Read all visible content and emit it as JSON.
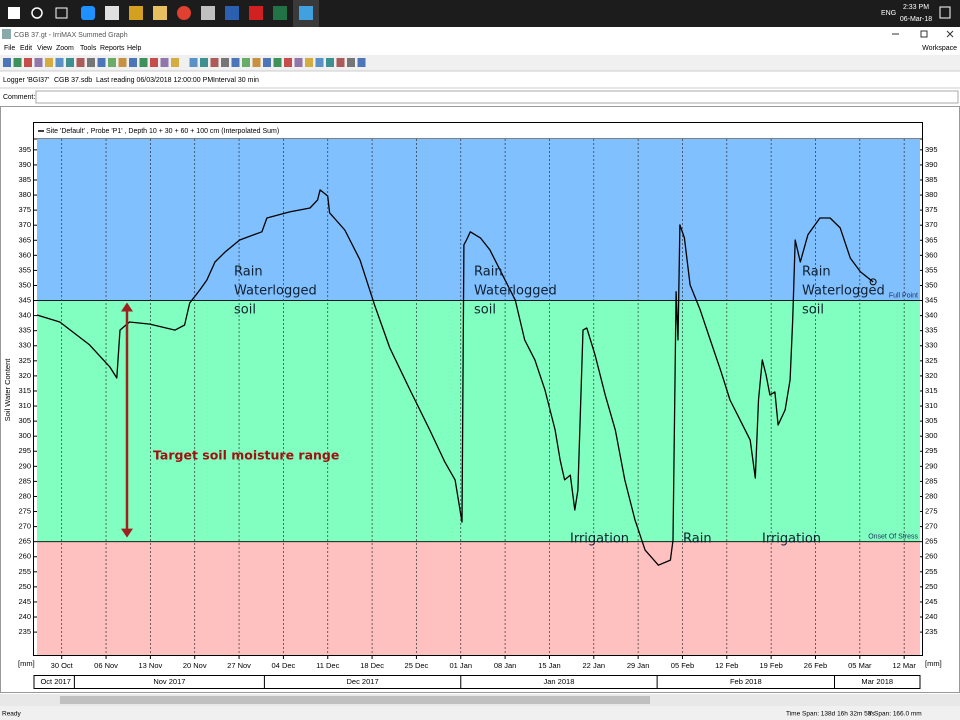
{
  "taskbar": {
    "language": "ENG",
    "time": "2:33 PM",
    "date": "06-Mar-18"
  },
  "window": {
    "title": "CGB 37.gt - IrriMAX Summed Graph",
    "menu": [
      "File",
      "Edit",
      "View",
      "Zoom",
      "Tools",
      "Reports",
      "Help"
    ],
    "workspace": "Workspace",
    "info": [
      "Logger 'BGI37'",
      "CGB 37.sdb",
      "Last reading 06/03/2018 12:00:00 PM",
      "Interval 30 min"
    ],
    "comment_label": "Comment:",
    "status": {
      "state": "Ready",
      "time_span": "Time Span: 138d 16h 32m 58s",
      "y_span": "Y Span: 166.0 mm"
    }
  },
  "chart_data": {
    "type": "line",
    "ylabel": "Soil Water Content",
    "y_unit": "[mm]",
    "x": [
      -3.9,
      -0.3,
      4.4,
      7.6,
      8.7,
      9.2,
      10.7,
      13.9,
      17.9,
      19.4,
      20.2,
      21.8,
      22.9,
      24.2,
      25.8,
      28.1,
      31.6,
      32.4,
      36,
      39.2,
      40.4,
      40.8,
      42,
      42.3,
      44.7,
      47.1,
      49.4,
      51.8,
      55,
      58.1,
      60.5,
      62.1,
      63.2,
      63.5,
      63.9,
      64.5,
      66.1,
      67.6,
      70,
      71.6,
      73.1,
      74.7,
      76.3,
      77.9,
      78.7,
      79.4,
      80.3,
      81,
      81.5,
      82.3,
      82.9,
      84.2,
      85.8,
      87.4,
      88.9,
      90.5,
      92.1,
      94.2,
      96.1,
      96.5,
      97,
      97.3,
      97.6,
      98.3,
      99.2,
      100.8,
      102.4,
      104,
      105.5,
      107.1,
      108.7,
      109.5,
      110,
      110.6,
      111.2,
      111.8,
      112.6,
      113.1,
      114.2,
      115,
      115.4,
      115.8,
      116.6,
      117.8,
      119.7,
      121.3,
      122.9,
      124.5,
      126.1,
      128.1
    ],
    "series": [
      {
        "name": "Site 'Default' , Probe 'P1' , Depth 10 + 30 + 60 + 100 cm (Interpolated Sum)",
        "color": "#000000",
        "values": [
          340.2,
          337.9,
          330.3,
          323,
          319.3,
          335.2,
          337.9,
          337.2,
          335.2,
          336.9,
          344.2,
          348.5,
          351.8,
          357.8,
          361.1,
          365.1,
          367.8,
          372.4,
          374.4,
          375.7,
          378.4,
          381.7,
          379.7,
          374.1,
          368.4,
          358.5,
          343.5,
          329.3,
          315.3,
          302.1,
          291.4,
          285.5,
          271.5,
          363.5,
          365.1,
          367.8,
          365.8,
          361.8,
          351.8,
          345.2,
          331.9,
          325.3,
          315.3,
          302.1,
          292,
          285.5,
          287.1,
          275.5,
          282.1,
          335.2,
          335.9,
          326.9,
          313.7,
          302.1,
          285.5,
          272.2,
          262.2,
          257.2,
          258.9,
          265.5,
          347.9,
          331.9,
          370.1,
          365.8,
          350.2,
          341.9,
          331.9,
          322,
          312,
          305.4,
          298.7,
          286.1,
          312,
          325.3,
          320.3,
          313.7,
          314.7,
          303.7,
          308.7,
          318.7,
          338.6,
          365.1,
          357.8,
          366.8,
          372.4,
          372.4,
          369.1,
          359.1,
          354.5,
          351.2
        ]
      }
    ],
    "xlim": [
      -3.9,
      135.5
    ],
    "xticks": [
      {
        "value": 0,
        "label": "30 Oct"
      },
      {
        "value": 7,
        "label": "06 Nov"
      },
      {
        "value": 14,
        "label": "13 Nov"
      },
      {
        "value": 21,
        "label": "20 Nov"
      },
      {
        "value": 28,
        "label": "27 Nov"
      },
      {
        "value": 35,
        "label": "04 Dec"
      },
      {
        "value": 42,
        "label": "11 Dec"
      },
      {
        "value": 49,
        "label": "18 Dec"
      },
      {
        "value": 56,
        "label": "25 Dec"
      },
      {
        "value": 63,
        "label": "01 Jan"
      },
      {
        "value": 70,
        "label": "08 Jan"
      },
      {
        "value": 77,
        "label": "15 Jan"
      },
      {
        "value": 84,
        "label": "22 Jan"
      },
      {
        "value": 91,
        "label": "29 Jan"
      },
      {
        "value": 98,
        "label": "05 Feb"
      },
      {
        "value": 105,
        "label": "12 Feb"
      },
      {
        "value": 112,
        "label": "19 Feb"
      },
      {
        "value": 119,
        "label": "26 Feb"
      },
      {
        "value": 126,
        "label": "05 Mar"
      },
      {
        "value": 133,
        "label": "12 Mar"
      }
    ],
    "month_starts": [
      2,
      32,
      63,
      94,
      122
    ],
    "month_labels": [
      "Oct 2017",
      "Nov 2017",
      "Dec 2017",
      "Jan 2018",
      "Feb 2018",
      "Mar 2018"
    ],
    "ylim": [
      227.4,
      398.6
    ],
    "yticks": [
      235,
      240,
      245,
      250,
      255,
      260,
      265,
      270,
      275,
      280,
      285,
      290,
      295,
      300,
      305,
      310,
      315,
      320,
      325,
      330,
      335,
      340,
      345,
      350,
      355,
      360,
      365,
      370,
      375,
      380,
      385,
      390,
      395
    ],
    "grid": "x",
    "zones": {
      "full_point": {
        "label": "Full Point",
        "value": 345
      },
      "onset_of_stress": {
        "label": "Onset Of Stress",
        "value": 265
      }
    },
    "zone_colors": {
      "above": "#80c0ff",
      "between": "#80ffc0",
      "below": "#ffc0c0"
    },
    "annotations": [
      "Rain",
      "Waterlogged",
      "soil",
      "Rain",
      "Waterlogged",
      "soil",
      "Rain",
      "Waterlogged",
      "soil",
      "Target soil moisture range",
      "Irrigation",
      "Rain",
      "Irrigation"
    ]
  }
}
